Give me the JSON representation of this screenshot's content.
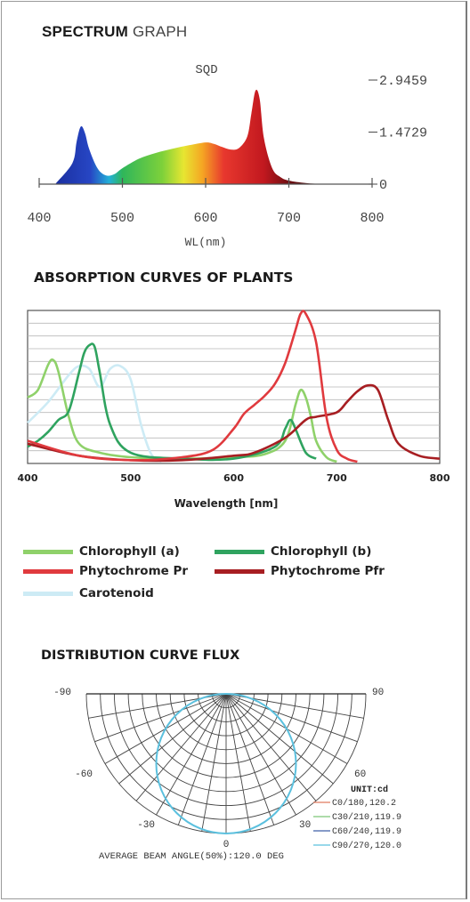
{
  "spectrum": {
    "title_bold": "SPECTRUM",
    "title_light": "GRAPH",
    "label": "SQD",
    "y_ticks": [
      "2.9459",
      "1.4729",
      "0"
    ],
    "x_ticks": [
      "400",
      "500",
      "600",
      "700",
      "800"
    ],
    "xlabel": "WL(nm)"
  },
  "absorption": {
    "title": "ABSORPTION CURVES OF PLANTS",
    "x_ticks": [
      "400",
      "500",
      "600",
      "700",
      "800"
    ],
    "xlabel": "Wavelength [nm]",
    "legend": [
      {
        "name": "Chlorophyll (a)",
        "color": "#8fd16a"
      },
      {
        "name": "Chlorophyll (b)",
        "color": "#2fa35f"
      },
      {
        "name": "Phytochrome Pr",
        "color": "#e03a3e"
      },
      {
        "name": "Phytochrome Pfr",
        "color": "#a71e22"
      },
      {
        "name": "Carotenoid",
        "color": "#cdebf5"
      }
    ]
  },
  "polar": {
    "title": "DISTRIBUTION CURVE FLUX",
    "angle_labels": {
      "left": [
        "-90",
        "-60",
        "-30"
      ],
      "right": [
        "90",
        "60",
        "30"
      ],
      "bottom": "0"
    },
    "unit": "UNIT:cd",
    "series": [
      {
        "name": "C0/180,120.2",
        "color": "#e07a5f"
      },
      {
        "name": "C30/210,119.9",
        "color": "#7cc576"
      },
      {
        "name": "C60/240,119.9",
        "color": "#3d5fa8"
      },
      {
        "name": "C90/270,120.0",
        "color": "#5bc0de"
      }
    ],
    "beam_angle": "AVERAGE BEAM ANGLE(50%):120.0 DEG"
  },
  "chart_data": [
    {
      "type": "area",
      "title": "SPECTRUM GRAPH",
      "xlabel": "WL(nm)",
      "ylabel": "",
      "xlim": [
        400,
        800
      ],
      "ylim": [
        0,
        2.9459
      ],
      "x": [
        420,
        440,
        445,
        450,
        455,
        460,
        470,
        480,
        490,
        500,
        520,
        540,
        560,
        580,
        600,
        610,
        620,
        630,
        640,
        650,
        655,
        660,
        665,
        670,
        680,
        690,
        700,
        720,
        740
      ],
      "values": [
        0.02,
        0.6,
        1.2,
        1.63,
        1.45,
        1.0,
        0.45,
        0.25,
        0.28,
        0.45,
        0.72,
        0.88,
        1.0,
        1.1,
        1.18,
        1.14,
        1.05,
        0.98,
        1.02,
        1.35,
        2.0,
        2.65,
        2.4,
        1.3,
        0.45,
        0.2,
        0.1,
        0.03,
        0.0
      ]
    },
    {
      "type": "line",
      "title": "ABSORPTION CURVES OF PLANTS",
      "xlabel": "Wavelength [nm]",
      "xlim": [
        400,
        800
      ],
      "ylim": [
        0,
        100
      ],
      "series": [
        {
          "name": "Chlorophyll (a)",
          "x": [
            400,
            410,
            420,
            425,
            430,
            440,
            450,
            470,
            500,
            550,
            600,
            630,
            650,
            660,
            665,
            670,
            675,
            680,
            690,
            700
          ],
          "values": [
            43,
            48,
            65,
            68,
            60,
            30,
            12,
            6,
            3,
            2,
            3,
            5,
            14,
            38,
            48,
            43,
            30,
            14,
            3,
            0
          ]
        },
        {
          "name": "Chlorophyll (b)",
          "x": [
            400,
            410,
            420,
            430,
            440,
            450,
            455,
            460,
            465,
            470,
            480,
            500,
            550,
            600,
            640,
            650,
            655,
            660,
            670,
            680
          ],
          "values": [
            10,
            14,
            20,
            28,
            34,
            60,
            73,
            78,
            77,
            60,
            25,
            6,
            2,
            2,
            10,
            22,
            28,
            22,
            6,
            2
          ]
        },
        {
          "name": "Phytochrome Pr",
          "x": [
            400,
            450,
            500,
            550,
            580,
            600,
            610,
            620,
            630,
            640,
            650,
            660,
            665,
            670,
            680,
            690,
            700,
            710,
            720
          ],
          "values": [
            14,
            4,
            1,
            3,
            8,
            22,
            32,
            38,
            44,
            52,
            66,
            88,
            99,
            99,
            80,
            30,
            8,
            2,
            0
          ]
        },
        {
          "name": "Phytochrome Pfr",
          "x": [
            400,
            450,
            500,
            550,
            600,
            620,
            650,
            670,
            680,
            700,
            710,
            720,
            730,
            740,
            750,
            760,
            780,
            800
          ],
          "values": [
            12,
            4,
            1,
            1,
            4,
            6,
            16,
            28,
            30,
            33,
            40,
            47,
            51,
            48,
            28,
            12,
            4,
            2
          ]
        },
        {
          "name": "Carotenoid",
          "x": [
            400,
            420,
            440,
            450,
            460,
            470,
            480,
            490,
            500,
            510,
            520,
            530
          ],
          "values": [
            26,
            40,
            58,
            64,
            62,
            50,
            62,
            64,
            55,
            25,
            5,
            0
          ]
        }
      ]
    },
    {
      "type": "polar",
      "title": "DISTRIBUTION CURVE FLUX",
      "angles": [
        -90,
        -60,
        -30,
        0,
        30,
        60,
        90
      ],
      "series": [
        {
          "name": "C0/180",
          "beam_angle": 120.2
        },
        {
          "name": "C30/210",
          "beam_angle": 119.9
        },
        {
          "name": "C60/240",
          "beam_angle": 119.9
        },
        {
          "name": "C90/270",
          "beam_angle": 120.0
        }
      ],
      "average_beam_angle": 120.0
    }
  ]
}
